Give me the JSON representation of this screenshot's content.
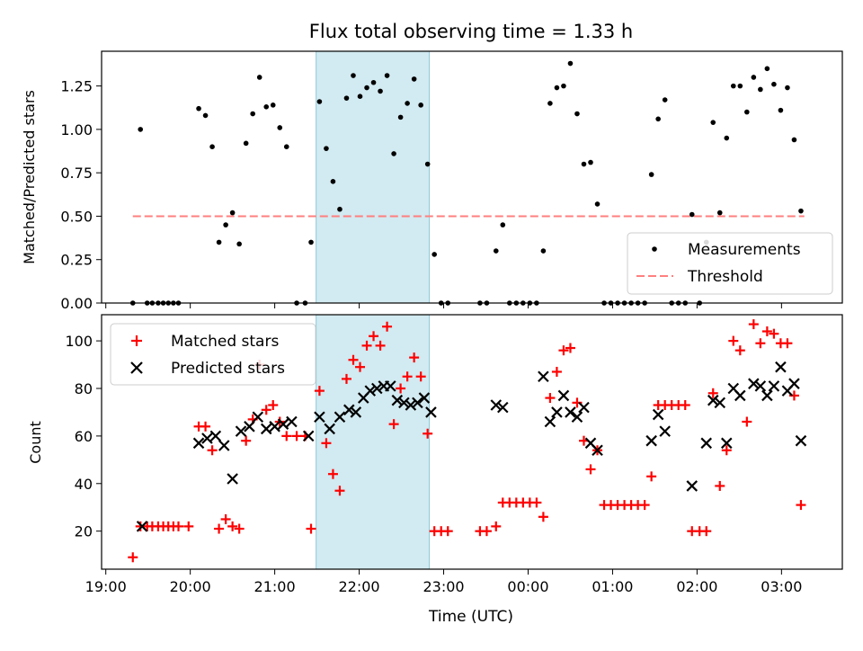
{
  "figure": {
    "title": "Flux total observing time = 1.33 h",
    "xlabel": "Time (UTC)",
    "x_tick_labels": [
      "19:00",
      "20:00",
      "21:00",
      "22:00",
      "23:00",
      "00:00",
      "01:00",
      "02:00",
      "03:00"
    ],
    "highlight_color": "#add8e6"
  },
  "chart_data": [
    {
      "type": "scatter",
      "title": "Flux total observing time = 1.33 h",
      "xlabel": "",
      "ylabel": "Matched/Predicted stars",
      "x_unit": "hours since 19:00 UTC (tick labels show clock time)",
      "xlim": [
        -0.05,
        8.72
      ],
      "ylim": [
        0,
        1.45
      ],
      "y_ticks": [
        "0.00",
        "0.25",
        "0.50",
        "0.75",
        "1.00",
        "1.25"
      ],
      "highlight_x_range": [
        2.49,
        3.83
      ],
      "legend_position": "bottom-right",
      "threshold": {
        "name": "Threshold",
        "y": 0.5,
        "x_range": [
          0.32,
          8.27
        ],
        "color": "#ff7f7f"
      },
      "series": [
        {
          "name": "Measurements",
          "color": "#000000",
          "marker": "dot",
          "points": [
            [
              0.32,
              0.0
            ],
            [
              0.41,
              1.0
            ],
            [
              0.49,
              0.0
            ],
            [
              0.55,
              0.0
            ],
            [
              0.62,
              0.0
            ],
            [
              0.68,
              0.0
            ],
            [
              0.74,
              0.0
            ],
            [
              0.8,
              0.0
            ],
            [
              0.86,
              0.0
            ],
            [
              1.1,
              1.12
            ],
            [
              1.18,
              1.08
            ],
            [
              1.26,
              0.9
            ],
            [
              1.34,
              0.35
            ],
            [
              1.42,
              0.45
            ],
            [
              1.5,
              0.52
            ],
            [
              1.58,
              0.34
            ],
            [
              1.66,
              0.92
            ],
            [
              1.74,
              1.09
            ],
            [
              1.82,
              1.3
            ],
            [
              1.9,
              1.13
            ],
            [
              1.98,
              1.14
            ],
            [
              2.06,
              1.01
            ],
            [
              2.14,
              0.9
            ],
            [
              2.26,
              0.0
            ],
            [
              2.36,
              0.0
            ],
            [
              2.43,
              0.35
            ],
            [
              2.53,
              1.16
            ],
            [
              2.61,
              0.89
            ],
            [
              2.69,
              0.7
            ],
            [
              2.77,
              0.54
            ],
            [
              2.85,
              1.18
            ],
            [
              2.93,
              1.31
            ],
            [
              3.01,
              1.19
            ],
            [
              3.09,
              1.24
            ],
            [
              3.17,
              1.27
            ],
            [
              3.25,
              1.22
            ],
            [
              3.33,
              1.31
            ],
            [
              3.41,
              0.86
            ],
            [
              3.49,
              1.07
            ],
            [
              3.57,
              1.15
            ],
            [
              3.65,
              1.29
            ],
            [
              3.73,
              1.14
            ],
            [
              3.81,
              0.8
            ],
            [
              3.89,
              0.28
            ],
            [
              3.97,
              0.0
            ],
            [
              4.05,
              0.0
            ],
            [
              4.43,
              0.0
            ],
            [
              4.51,
              0.0
            ],
            [
              4.62,
              0.3
            ],
            [
              4.7,
              0.45
            ],
            [
              4.78,
              0.0
            ],
            [
              4.86,
              0.0
            ],
            [
              4.94,
              0.0
            ],
            [
              5.02,
              0.0
            ],
            [
              5.1,
              0.0
            ],
            [
              5.18,
              0.3
            ],
            [
              5.26,
              1.15
            ],
            [
              5.34,
              1.24
            ],
            [
              5.42,
              1.25
            ],
            [
              5.5,
              1.38
            ],
            [
              5.58,
              1.09
            ],
            [
              5.66,
              0.8
            ],
            [
              5.74,
              0.81
            ],
            [
              5.82,
              0.57
            ],
            [
              5.9,
              0.0
            ],
            [
              5.98,
              0.0
            ],
            [
              6.06,
              0.0
            ],
            [
              6.14,
              0.0
            ],
            [
              6.22,
              0.0
            ],
            [
              6.3,
              0.0
            ],
            [
              6.38,
              0.0
            ],
            [
              6.46,
              0.74
            ],
            [
              6.54,
              1.06
            ],
            [
              6.62,
              1.17
            ],
            [
              6.7,
              0.0
            ],
            [
              6.78,
              0.0
            ],
            [
              6.86,
              0.0
            ],
            [
              6.94,
              0.51
            ],
            [
              7.03,
              0.0
            ],
            [
              7.11,
              0.35
            ],
            [
              7.19,
              1.04
            ],
            [
              7.27,
              0.52
            ],
            [
              7.35,
              0.95
            ],
            [
              7.43,
              1.25
            ],
            [
              7.51,
              1.25
            ],
            [
              7.59,
              1.1
            ],
            [
              7.67,
              1.3
            ],
            [
              7.75,
              1.23
            ],
            [
              7.83,
              1.35
            ],
            [
              7.91,
              1.26
            ],
            [
              7.99,
              1.11
            ],
            [
              8.07,
              1.24
            ],
            [
              8.15,
              0.94
            ],
            [
              8.23,
              0.53
            ]
          ]
        }
      ]
    },
    {
      "type": "scatter",
      "title": "",
      "xlabel": "Time (UTC)",
      "ylabel": "Count",
      "x_unit": "hours since 19:00 UTC (tick labels show clock time)",
      "xlim": [
        -0.05,
        8.72
      ],
      "ylim": [
        4,
        111
      ],
      "y_ticks": [
        "20",
        "40",
        "60",
        "80",
        "100"
      ],
      "highlight_x_range": [
        2.49,
        3.83
      ],
      "legend_position": "top-left",
      "series": [
        {
          "name": "Matched stars",
          "color": "#ff0000",
          "marker": "plus",
          "points": [
            [
              0.32,
              9
            ],
            [
              0.41,
              22
            ],
            [
              0.49,
              22
            ],
            [
              0.55,
              22
            ],
            [
              0.62,
              22
            ],
            [
              0.68,
              22
            ],
            [
              0.74,
              22
            ],
            [
              0.8,
              22
            ],
            [
              0.86,
              22
            ],
            [
              0.98,
              22
            ],
            [
              1.1,
              64
            ],
            [
              1.18,
              64
            ],
            [
              1.26,
              54
            ],
            [
              1.34,
              21
            ],
            [
              1.42,
              25
            ],
            [
              1.5,
              22
            ],
            [
              1.58,
              21
            ],
            [
              1.66,
              58
            ],
            [
              1.74,
              67
            ],
            [
              1.82,
              90
            ],
            [
              1.9,
              71
            ],
            [
              1.98,
              73
            ],
            [
              2.06,
              66
            ],
            [
              2.14,
              60
            ],
            [
              2.26,
              60
            ],
            [
              2.36,
              60
            ],
            [
              2.43,
              21
            ],
            [
              2.53,
              79
            ],
            [
              2.61,
              57
            ],
            [
              2.69,
              44
            ],
            [
              2.77,
              37
            ],
            [
              2.85,
              84
            ],
            [
              2.93,
              92
            ],
            [
              3.01,
              89
            ],
            [
              3.09,
              98
            ],
            [
              3.17,
              102
            ],
            [
              3.25,
              98
            ],
            [
              3.33,
              106
            ],
            [
              3.41,
              65
            ],
            [
              3.49,
              80
            ],
            [
              3.57,
              85
            ],
            [
              3.65,
              93
            ],
            [
              3.73,
              85
            ],
            [
              3.81,
              61
            ],
            [
              3.89,
              20
            ],
            [
              3.97,
              20
            ],
            [
              4.05,
              20
            ],
            [
              4.43,
              20
            ],
            [
              4.51,
              20
            ],
            [
              4.62,
              22
            ],
            [
              4.7,
              32
            ],
            [
              4.78,
              32
            ],
            [
              4.86,
              32
            ],
            [
              4.94,
              32
            ],
            [
              5.02,
              32
            ],
            [
              5.1,
              32
            ],
            [
              5.18,
              26
            ],
            [
              5.26,
              76
            ],
            [
              5.34,
              87
            ],
            [
              5.42,
              96
            ],
            [
              5.5,
              97
            ],
            [
              5.58,
              74
            ],
            [
              5.66,
              58
            ],
            [
              5.74,
              46
            ],
            [
              5.82,
              54
            ],
            [
              5.9,
              31
            ],
            [
              5.98,
              31
            ],
            [
              6.06,
              31
            ],
            [
              6.14,
              31
            ],
            [
              6.22,
              31
            ],
            [
              6.3,
              31
            ],
            [
              6.38,
              31
            ],
            [
              6.46,
              43
            ],
            [
              6.54,
              73
            ],
            [
              6.62,
              73
            ],
            [
              6.7,
              73
            ],
            [
              6.78,
              73
            ],
            [
              6.86,
              73
            ],
            [
              6.94,
              20
            ],
            [
              7.03,
              20
            ],
            [
              7.11,
              20
            ],
            [
              7.19,
              78
            ],
            [
              7.27,
              39
            ],
            [
              7.35,
              54
            ],
            [
              7.43,
              100
            ],
            [
              7.51,
              96
            ],
            [
              7.59,
              66
            ],
            [
              7.67,
              107
            ],
            [
              7.75,
              99
            ],
            [
              7.83,
              104
            ],
            [
              7.91,
              103
            ],
            [
              7.99,
              99
            ],
            [
              8.07,
              99
            ],
            [
              8.15,
              77
            ],
            [
              8.23,
              31
            ]
          ]
        },
        {
          "name": "Predicted stars",
          "color": "#000000",
          "marker": "x",
          "points": [
            [
              0.43,
              22
            ],
            [
              1.1,
              57
            ],
            [
              1.2,
              59
            ],
            [
              1.3,
              60
            ],
            [
              1.4,
              56
            ],
            [
              1.5,
              42
            ],
            [
              1.6,
              62
            ],
            [
              1.7,
              64
            ],
            [
              1.8,
              68
            ],
            [
              1.9,
              63
            ],
            [
              2.0,
              64
            ],
            [
              2.1,
              65
            ],
            [
              2.2,
              66
            ],
            [
              2.4,
              60
            ],
            [
              2.53,
              68
            ],
            [
              2.65,
              63
            ],
            [
              2.77,
              68
            ],
            [
              2.88,
              71
            ],
            [
              2.96,
              70
            ],
            [
              3.05,
              76
            ],
            [
              3.13,
              79
            ],
            [
              3.21,
              80
            ],
            [
              3.29,
              81
            ],
            [
              3.37,
              81
            ],
            [
              3.45,
              75
            ],
            [
              3.53,
              74
            ],
            [
              3.61,
              73
            ],
            [
              3.69,
              74
            ],
            [
              3.77,
              76
            ],
            [
              3.85,
              70
            ],
            [
              4.62,
              73
            ],
            [
              4.7,
              72
            ],
            [
              5.18,
              85
            ],
            [
              5.26,
              66
            ],
            [
              5.34,
              70
            ],
            [
              5.42,
              77
            ],
            [
              5.5,
              70
            ],
            [
              5.58,
              68
            ],
            [
              5.66,
              72
            ],
            [
              5.74,
              57
            ],
            [
              5.82,
              54
            ],
            [
              6.46,
              58
            ],
            [
              6.54,
              69
            ],
            [
              6.62,
              62
            ],
            [
              6.94,
              39
            ],
            [
              7.11,
              57
            ],
            [
              7.19,
              75
            ],
            [
              7.27,
              74
            ],
            [
              7.35,
              57
            ],
            [
              7.43,
              80
            ],
            [
              7.51,
              77
            ],
            [
              7.67,
              82
            ],
            [
              7.75,
              81
            ],
            [
              7.83,
              77
            ],
            [
              7.91,
              81
            ],
            [
              7.99,
              89
            ],
            [
              8.07,
              79
            ],
            [
              8.15,
              82
            ],
            [
              8.23,
              58
            ]
          ]
        }
      ]
    }
  ]
}
